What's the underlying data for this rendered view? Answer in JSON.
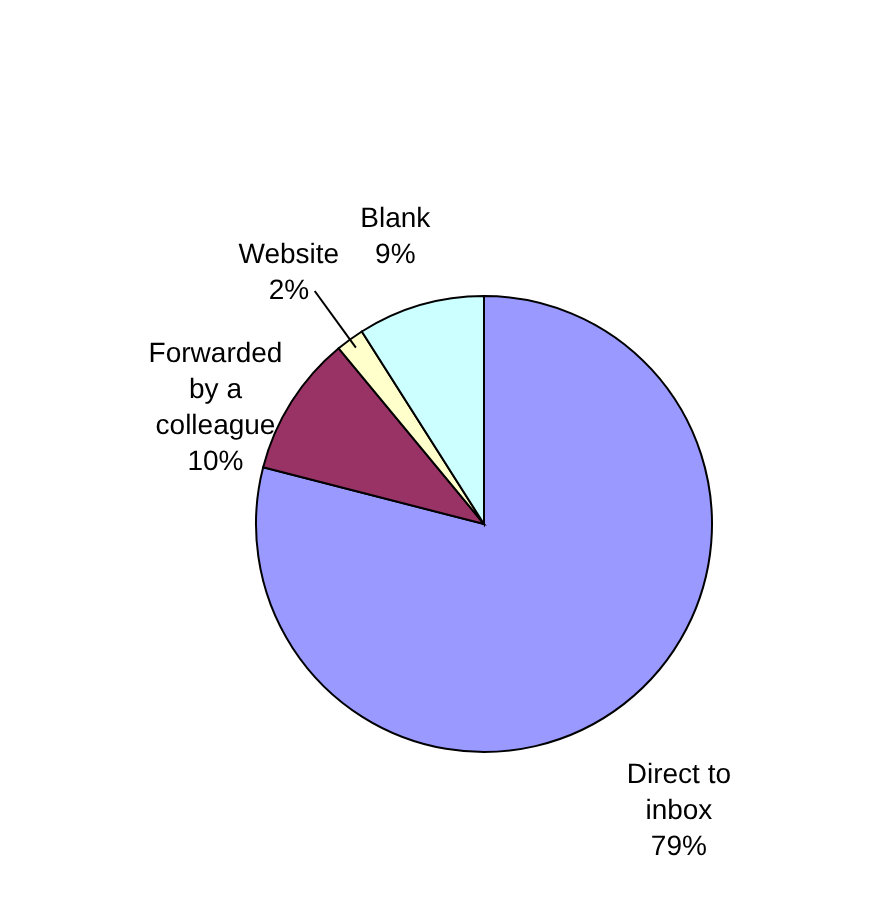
{
  "chart_data": {
    "type": "pie",
    "categories": [
      "Direct to inbox",
      "Forwarded by a colleague",
      "Website",
      "Blank"
    ],
    "values": [
      79,
      10,
      2,
      9
    ],
    "colors": [
      "#9999ff",
      "#993366",
      "#ffffcc",
      "#ccffff"
    ],
    "value_labels": [
      "79%",
      "10%",
      "2%",
      "9%"
    ]
  }
}
